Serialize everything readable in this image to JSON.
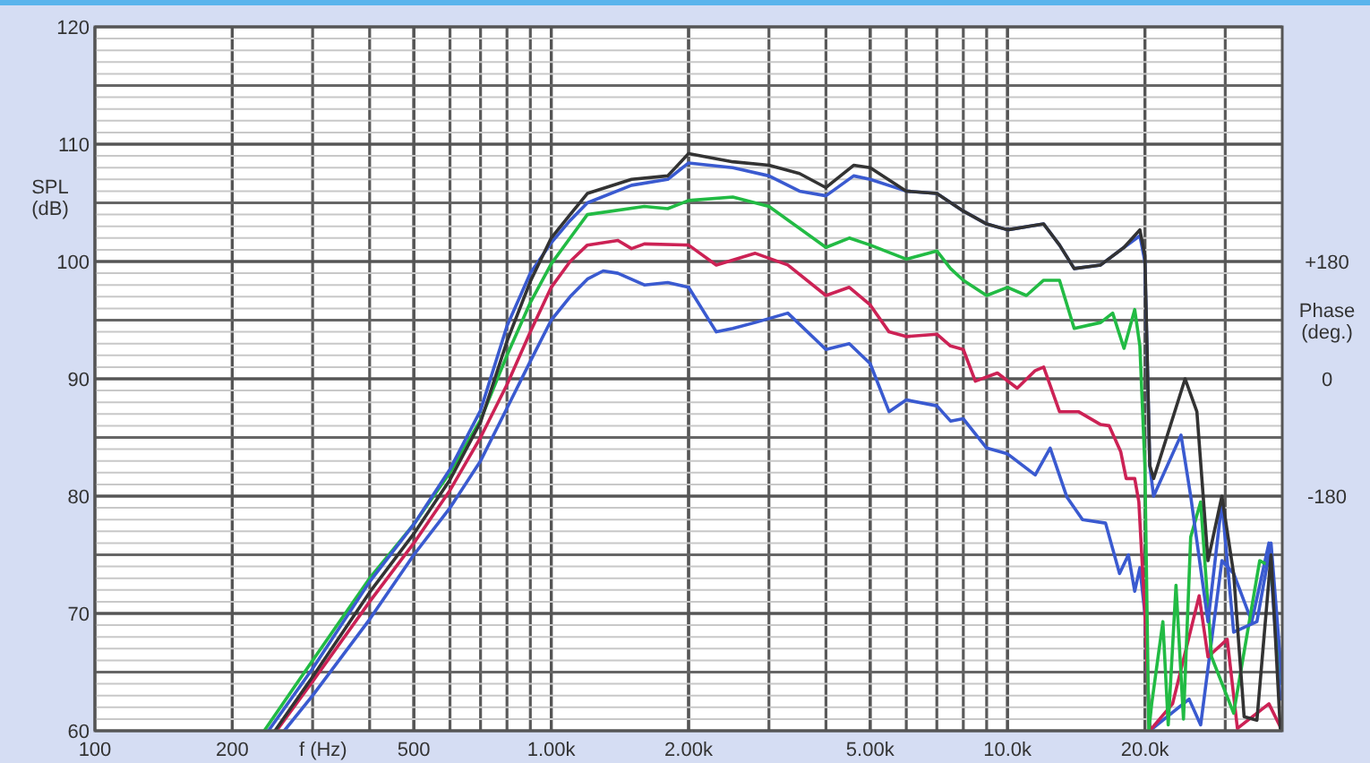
{
  "chart_data": {
    "type": "line",
    "xlabel": "f (Hz)",
    "ylabel": "SPL (dB)",
    "y2label": "Phase (deg.)",
    "log": "x",
    "grid": true,
    "marker": "none",
    "line_style": "solid",
    "xlim": [
      100,
      40000
    ],
    "xticks": [
      100,
      200,
      500,
      {
        "value": 1000,
        "label": "1.00k"
      },
      {
        "value": 2000,
        "label": "2.00k"
      },
      {
        "value": 5000,
        "label": "5.00k"
      },
      {
        "value": 10000,
        "label": "10.0k"
      },
      {
        "value": 20000,
        "label": "20.0k"
      }
    ],
    "ylim": [
      60,
      120
    ],
    "yticks": [
      60,
      70,
      80,
      90,
      100,
      110,
      120
    ],
    "y2lim": [
      -540,
      540
    ],
    "y2ticks": [
      {
        "value": 180,
        "label": "+180"
      },
      0,
      -180
    ],
    "series": [
      {
        "color": "#3a5ad0",
        "x": [
          260,
          300,
          400,
          500,
          600,
          700,
          800,
          900,
          1000,
          1100,
          1200,
          1300,
          1400,
          1600,
          1800,
          2000,
          2300,
          2500,
          2800,
          3300,
          4000,
          4500,
          5000,
          5500,
          6000,
          7000,
          7500,
          8000,
          9000,
          10000,
          11500,
          12400,
          13500,
          14600,
          16400,
          17600,
          18400,
          19000,
          19500,
          20000,
          20500,
          25000,
          26500,
          29500,
          31300,
          34300,
          37400,
          39600
        ],
        "values": [
          60,
          63,
          69.5,
          75,
          79,
          83,
          87.5,
          91.5,
          95,
          97,
          98.5,
          99.2,
          99,
          98,
          98.2,
          97.8,
          94,
          94.3,
          94.8,
          95.6,
          92.5,
          93,
          91.3,
          87.2,
          88.2,
          87.7,
          86.4,
          86.6,
          84.1,
          83.6,
          81.8,
          84.1,
          79.9,
          78,
          77.7,
          73.4,
          75,
          71.9,
          73.9,
          70,
          60,
          62.7,
          60.5,
          74.5,
          73.4,
          69.3,
          76,
          62.7
        ]
      },
      {
        "color": "#cc2255",
        "x": [
          250,
          300,
          400,
          500,
          600,
          700,
          800,
          900,
          1000,
          1100,
          1200,
          1400,
          1500,
          1600,
          2000,
          2300,
          2800,
          3300,
          4000,
          4500,
          5000,
          5500,
          6000,
          7000,
          7500,
          8000,
          8500,
          9500,
          10500,
          11500,
          12000,
          13000,
          14300,
          16000,
          16700,
          17700,
          18200,
          19000,
          19400,
          20000,
          20500,
          23000,
          26300,
          27500,
          30300,
          31900,
          37400,
          40000
        ],
        "values": [
          60,
          64.2,
          71,
          76,
          80.5,
          85,
          89.5,
          94,
          97.8,
          100,
          101.4,
          101.8,
          101.1,
          101.5,
          101.4,
          99.7,
          100.7,
          99.7,
          97.1,
          97.8,
          96.3,
          94,
          93.6,
          93.8,
          92.8,
          92.5,
          89.8,
          90.5,
          89.2,
          90.7,
          91,
          87.2,
          87.2,
          86.1,
          86,
          83.8,
          81.5,
          81.5,
          79.5,
          70,
          60,
          62.3,
          71.5,
          66.3,
          67.8,
          60.2,
          62.3,
          60
        ]
      },
      {
        "color": "#22bb44",
        "x": [
          235,
          300,
          400,
          500,
          600,
          700,
          800,
          900,
          1000,
          1100,
          1200,
          1600,
          1800,
          2000,
          2500,
          3000,
          4000,
          4500,
          5000,
          6000,
          7000,
          7500,
          8000,
          9000,
          10000,
          11000,
          12000,
          13000,
          14000,
          16000,
          17000,
          18000,
          19000,
          19500,
          20000,
          20400,
          20700,
          21900,
          22500,
          23400,
          24300,
          25200,
          26500,
          28000,
          31300,
          35700,
          37800,
          40000
        ],
        "values": [
          60,
          66,
          73,
          77.6,
          82,
          86.5,
          92,
          96.5,
          99.8,
          102,
          104,
          104.7,
          104.5,
          105.2,
          105.5,
          104.7,
          101.2,
          102,
          101.4,
          100.2,
          100.9,
          99.4,
          98.4,
          97.1,
          97.8,
          97.1,
          98.4,
          98.4,
          94.3,
          94.8,
          95.6,
          92.6,
          95.9,
          92.8,
          82.6,
          60,
          62.3,
          69.3,
          60.5,
          72.4,
          61,
          76.5,
          79.5,
          66.3,
          61.5,
          74.5,
          74,
          64
        ]
      },
      {
        "color": "#3a5ad0",
        "x": [
          240,
          300,
          400,
          500,
          600,
          700,
          800,
          900,
          1000,
          1100,
          1200,
          1500,
          1800,
          2000,
          2500,
          3000,
          3500,
          4000,
          4600,
          5000,
          6000,
          7000,
          8000,
          9000,
          10000,
          12000,
          13000,
          14000,
          16000,
          18000,
          19500,
          20000,
          20500,
          20900,
          24000,
          25200,
          27500,
          29500,
          31300,
          35200,
          37800,
          40000
        ],
        "values": [
          60,
          65.3,
          72.7,
          77.6,
          82.3,
          87.3,
          94.5,
          99,
          101.6,
          103.5,
          105,
          106.5,
          107,
          108.4,
          108,
          107.3,
          106,
          105.6,
          107.3,
          107,
          106,
          105.8,
          104.3,
          103.2,
          102.7,
          103.2,
          101.4,
          99.4,
          99.7,
          101.2,
          102.2,
          100,
          82.6,
          80,
          85.2,
          80,
          69.3,
          79.5,
          68.4,
          69.3,
          76,
          64
        ]
      },
      {
        "color": "#333333",
        "x": [
          248,
          300,
          400,
          500,
          600,
          700,
          800,
          900,
          1000,
          1100,
          1200,
          1500,
          1800,
          2000,
          2500,
          3000,
          3500,
          4000,
          4600,
          5000,
          6000,
          7000,
          8000,
          9000,
          10000,
          12000,
          13000,
          14000,
          16000,
          18000,
          19500,
          20000,
          20500,
          20900,
          21500,
          24500,
          26000,
          27500,
          29500,
          31300,
          33000,
          35200,
          37800,
          39600
        ],
        "values": [
          60,
          64.6,
          71.8,
          76.8,
          81.4,
          86.3,
          93.2,
          98.3,
          102,
          104,
          105.8,
          107,
          107.3,
          109.2,
          108.5,
          108.2,
          107.5,
          106.3,
          108.2,
          108,
          106,
          105.8,
          104.3,
          103.2,
          102.7,
          103.2,
          101.4,
          99.4,
          99.7,
          101.2,
          102.7,
          100.5,
          82.6,
          81.5,
          83,
          90,
          87.2,
          74.5,
          80,
          73.4,
          61.2,
          60.9,
          75,
          60.2
        ]
      }
    ]
  }
}
